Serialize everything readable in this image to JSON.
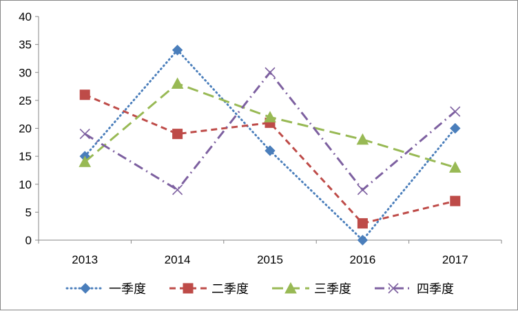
{
  "chart_data": {
    "type": "line",
    "title": "",
    "xlabel": "",
    "ylabel": "",
    "categories": [
      "2013",
      "2014",
      "2015",
      "2016",
      "2017"
    ],
    "ylim": [
      0,
      40
    ],
    "yticks": [
      0,
      5,
      10,
      15,
      20,
      25,
      30,
      35,
      40
    ],
    "grid": false,
    "legend_position": "bottom",
    "series": [
      {
        "name": "一季度",
        "values": [
          15,
          34,
          16,
          0,
          20
        ],
        "color": "#4A7EBB",
        "marker": "diamond",
        "dash": "dotted"
      },
      {
        "name": "二季度",
        "values": [
          26,
          19,
          21,
          3,
          7
        ],
        "color": "#BE4B48",
        "marker": "square",
        "dash": "dashed"
      },
      {
        "name": "三季度",
        "values": [
          14,
          28,
          22,
          18,
          13
        ],
        "color": "#98B954",
        "marker": "triangle",
        "dash": "longdash"
      },
      {
        "name": "四季度",
        "values": [
          19,
          9,
          30,
          9,
          23
        ],
        "color": "#7D60A0",
        "marker": "x",
        "dash": "dashdot"
      }
    ]
  }
}
